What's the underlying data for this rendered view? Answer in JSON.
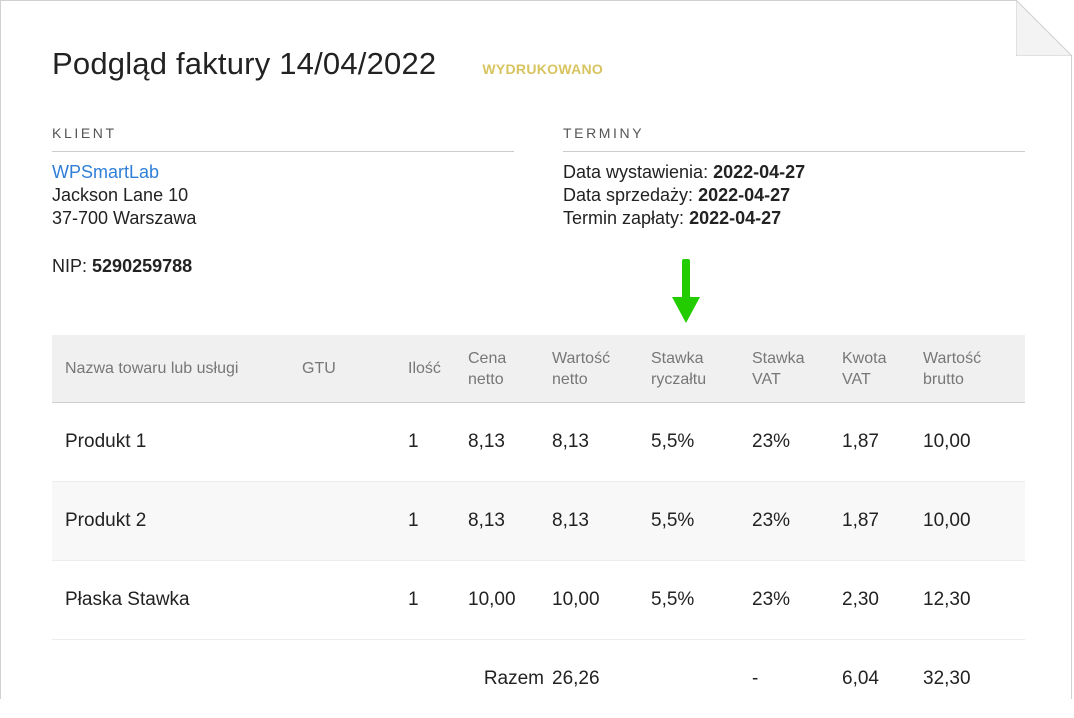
{
  "header": {
    "title": "Podgląd faktury 14/04/2022",
    "status": "WYDRUKOWANO"
  },
  "client": {
    "heading": "KLIENT",
    "name": "WPSmartLab",
    "street": "Jackson Lane 10",
    "city": "37-700 Warszawa",
    "nip_label": "NIP:",
    "nip_value": "5290259788"
  },
  "terms": {
    "heading": "TERMINY",
    "issue_label": "Data wystawienia:",
    "issue_value": "2022-04-27",
    "sale_label": "Data sprzedaży:",
    "sale_value": "2022-04-27",
    "due_label": "Termin zapłaty:",
    "due_value": "2022-04-27"
  },
  "table": {
    "columns": [
      [
        "Nazwa towaru lub usługi"
      ],
      [
        "GTU"
      ],
      [
        "Ilość"
      ],
      [
        "Cena",
        "netto"
      ],
      [
        "Wartość",
        "netto"
      ],
      [
        "Stawka",
        "ryczałtu"
      ],
      [
        "Stawka",
        "VAT"
      ],
      [
        "Kwota",
        "VAT"
      ],
      [
        "Wartość",
        "brutto"
      ]
    ],
    "rows": [
      [
        "Produkt 1",
        "",
        "1",
        "8,13",
        "8,13",
        "5,5%",
        "23%",
        "1,87",
        "10,00"
      ],
      [
        "Produkt 2",
        "",
        "1",
        "8,13",
        "8,13",
        "5,5%",
        "23%",
        "1,87",
        "10,00"
      ],
      [
        "Płaska Stawka",
        "",
        "1",
        "10,00",
        "10,00",
        "5,5%",
        "23%",
        "2,30",
        "12,30"
      ]
    ],
    "totals": {
      "label": "Razem",
      "net": "26,26",
      "vat_rate": "-",
      "vat_amount": "6,04",
      "gross": "32,30"
    }
  },
  "colors": {
    "status": "#d8c45f",
    "link": "#2f7fd8",
    "arrow": "#22cc00"
  }
}
